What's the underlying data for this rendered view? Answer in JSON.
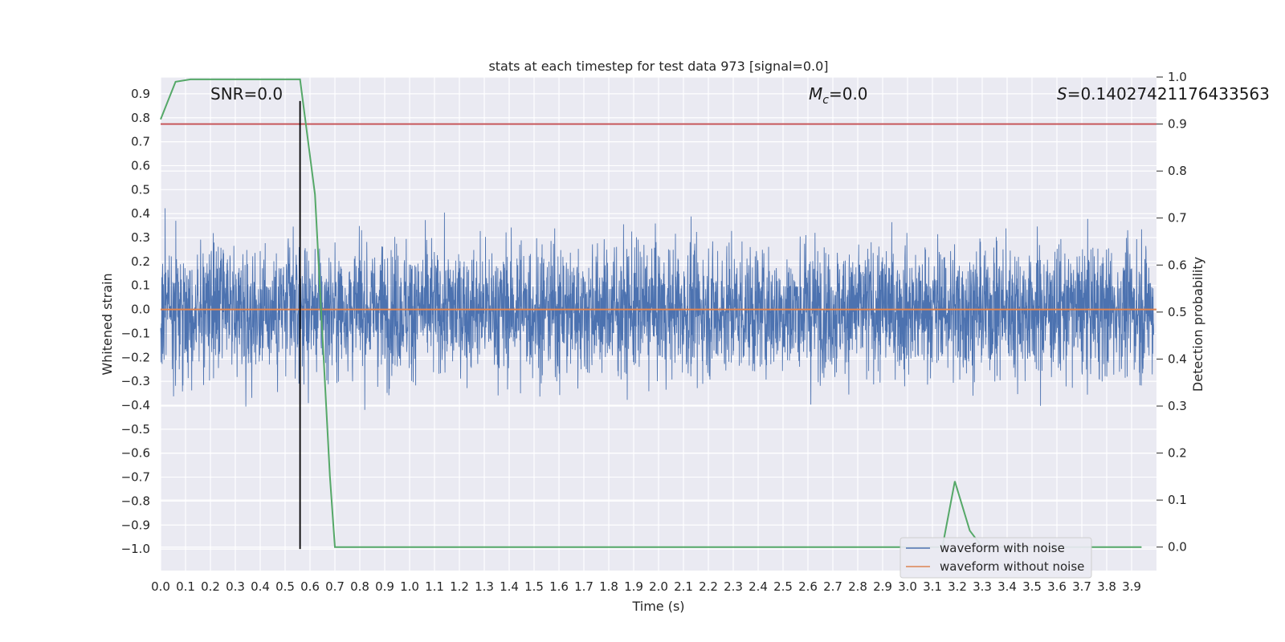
{
  "chart_data": {
    "type": "line",
    "title": "stats at each timestep for test data 973 [signal=0.0]",
    "xlabel": "Time (s)",
    "ylabel": "Whitened strain",
    "y2label": "Detection probability",
    "xlim": [
      0.0,
      4.0
    ],
    "ylim": [
      -1.09,
      0.97
    ],
    "y2lim": [
      -0.05,
      1.0
    ],
    "xticks": [
      "0.0",
      "0.1",
      "0.2",
      "0.3",
      "0.4",
      "0.5",
      "0.6",
      "0.7",
      "0.8",
      "0.9",
      "1.0",
      "1.1",
      "1.2",
      "1.3",
      "1.4",
      "1.5",
      "1.6",
      "1.7",
      "1.8",
      "1.9",
      "2.0",
      "2.1",
      "2.2",
      "2.3",
      "2.4",
      "2.5",
      "2.6",
      "2.7",
      "2.8",
      "2.9",
      "3.0",
      "3.1",
      "3.2",
      "3.3",
      "3.4",
      "3.5",
      "3.6",
      "3.7",
      "3.8",
      "3.9"
    ],
    "yticks": [
      "0.9",
      "0.8",
      "0.7",
      "0.6",
      "0.5",
      "0.4",
      "0.3",
      "0.2",
      "0.1",
      "0.0",
      "−0.1",
      "−0.2",
      "−0.3",
      "−0.4",
      "−0.5",
      "−0.6",
      "−0.7",
      "−0.8",
      "−0.9",
      "−1.0"
    ],
    "y2ticks": [
      "1.0",
      "0.9",
      "0.8",
      "0.7",
      "0.6",
      "0.5",
      "0.4",
      "0.3",
      "0.2",
      "0.1",
      "0.0"
    ],
    "annotations": {
      "snr": "SNR=0.0",
      "mc_symbol": "M",
      "mc_sub": "c",
      "mc_value": "=0.0",
      "s_symbol": "S",
      "s_value": "=0.14027421176433563"
    },
    "series": [
      {
        "name": "waveform with noise",
        "color": "#4c72b0",
        "description": "whitened noisy strain, dense, roughly within -0.6..0.7"
      },
      {
        "name": "waveform without noise",
        "color": "#dd8452",
        "value": 0.0
      },
      {
        "name": "detection probability",
        "color": "#55a868",
        "axis": "right",
        "x": [
          0.0,
          0.06,
          0.12,
          0.3,
          0.5,
          0.56,
          0.62,
          0.68,
          0.7,
          3.0,
          3.14,
          3.19,
          3.25,
          3.3,
          3.94
        ],
        "values": [
          0.91,
          0.99,
          0.995,
          0.995,
          0.995,
          0.995,
          0.75,
          0.15,
          0.0,
          0.0,
          0.0,
          0.14,
          0.035,
          0.0,
          0.0
        ]
      },
      {
        "name": "threshold",
        "color": "#c44e52",
        "axis": "right",
        "value": 0.9
      },
      {
        "name": "marker",
        "color": "#000000",
        "x": 0.56,
        "y_range": [
          -1.0,
          0.87
        ]
      }
    ],
    "legend": {
      "position": "lower-right",
      "entries": [
        {
          "label": "waveform with noise",
          "color": "#4c72b0"
        },
        {
          "label": "waveform without noise",
          "color": "#dd8452"
        }
      ]
    }
  }
}
